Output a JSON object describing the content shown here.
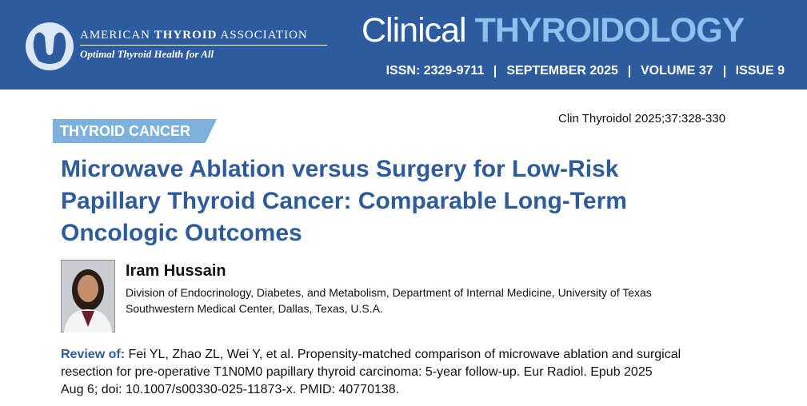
{
  "header": {
    "association": {
      "name_part1": "AMERICAN",
      "name_part2": "THYROID",
      "name_part3": "ASSOCIATION",
      "tagline": "Optimal Thyroid Health for All"
    },
    "journal": {
      "title_part1": "Clinical",
      "title_part2": "THYROIDOLOGY",
      "issue_info": [
        "ISSN: 2329-9711",
        "SEPTEMBER 2025",
        "VOLUME 37",
        "ISSUE 9"
      ]
    }
  },
  "article": {
    "section": "THYROID CANCER",
    "citation": "Clin Thyroidol 2025;37:328-330",
    "title_lines": [
      "Microwave Ablation versus Surgery for Low-Risk",
      "Papillary Thyroid Cancer: Comparable Long-Term",
      "Oncologic Outcomes"
    ],
    "author": {
      "name": "Iram Hussain",
      "affiliation_lines": [
        "Division of Endocrinology, Diabetes, and Metabolism, Department of Internal Medicine, University of Texas",
        "Southwestern Medical Center, Dallas, Texas, U.S.A."
      ]
    },
    "review": {
      "label": "Review of:",
      "lines": [
        "Fei YL, Zhao ZL, Wei Y, et al. Propensity-matched comparison of microwave ablation and surgical",
        "resection for pre-operative T1N0M0 papillary thyroid carcinoma: 5-year follow-up. Eur Radiol. Epub 2025",
        "Aug 6; doi: 10.1007/s00330-025-11873-x. PMID: 40770138."
      ]
    }
  }
}
